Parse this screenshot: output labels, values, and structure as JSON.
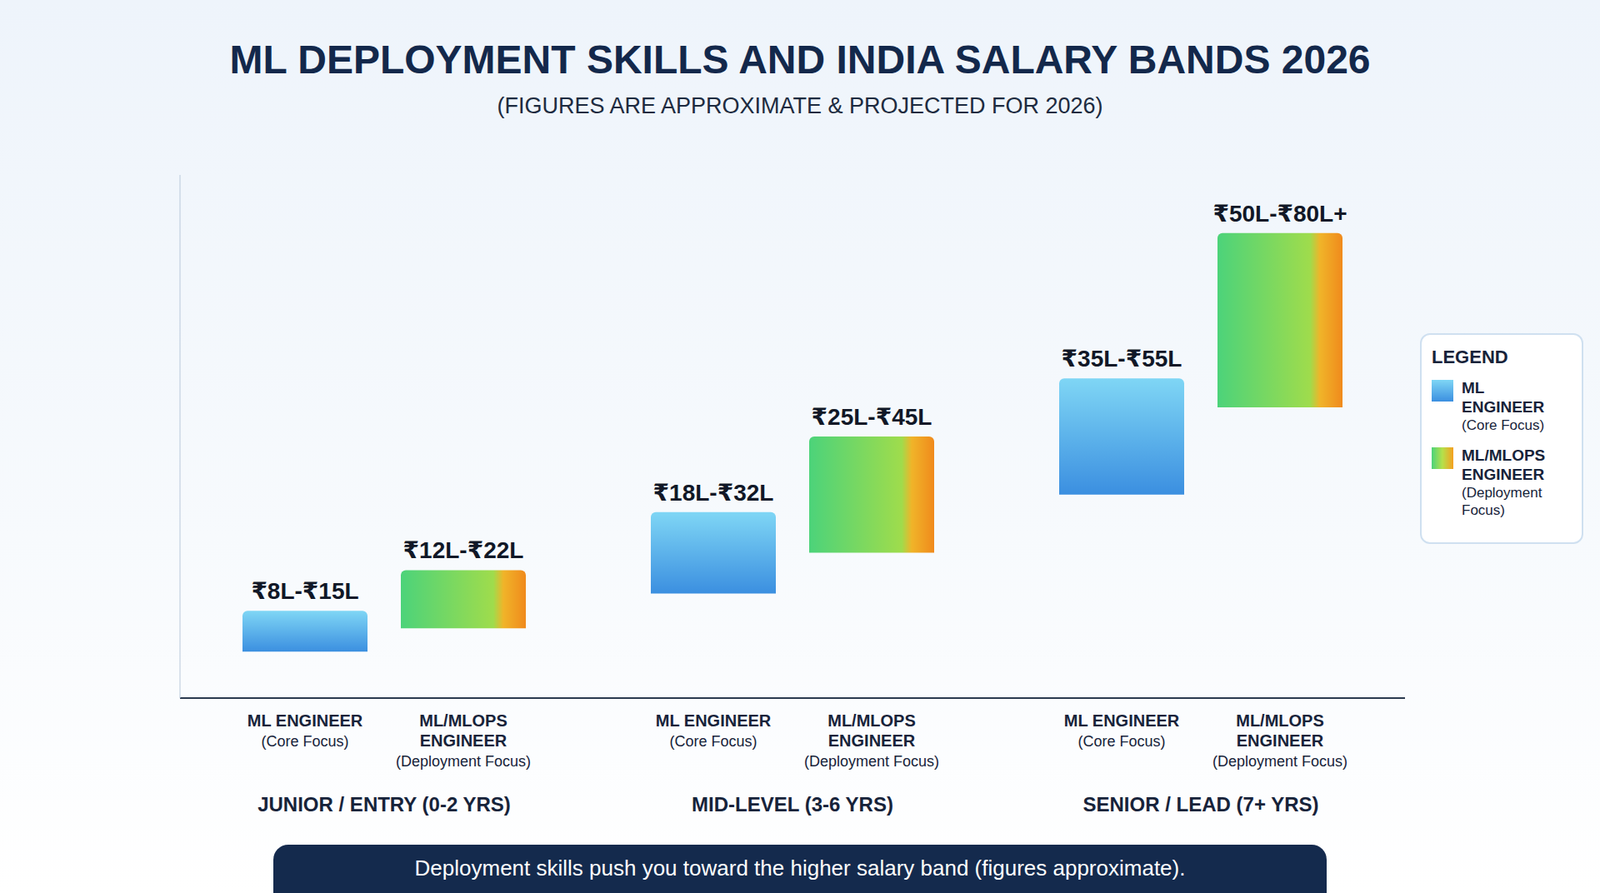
{
  "chart_data": {
    "type": "bar",
    "title": "ML DEPLOYMENT SKILLS AND INDIA SALARY BANDS 2026",
    "subtitle": "(FIGURES ARE APPROXIMATE & PROJECTED FOR 2026)",
    "categories": [
      "JUNIOR / ENTRY (0-2 YRS)",
      "MID-LEVEL (3-6 YRS)",
      "SENIOR / LEAD (7+ YRS)"
    ],
    "series": [
      {
        "name": "ML ENGINEER (Core Focus)",
        "color": "#3b8fe0",
        "values": [
          [
            8,
            15
          ],
          [
            18,
            32
          ],
          [
            35,
            55
          ]
        ],
        "value_labels": [
          "₹8L-₹15L",
          "₹18L-₹32L",
          "₹35L-₹55L"
        ]
      },
      {
        "name": "ML/MLOPS ENGINEER (Deployment Focus)",
        "color": "#4cd37a",
        "values": [
          [
            12,
            22
          ],
          [
            25,
            45
          ],
          [
            50,
            80
          ]
        ],
        "value_labels": [
          "₹12L-₹22L",
          "₹25L-₹45L",
          "₹50L-₹80L+"
        ]
      }
    ],
    "ylim": [
      0,
      90
    ],
    "grid": false,
    "legend": "right",
    "legend_title": "LEGEND",
    "data_labels": true,
    "tick_labels": "x",
    "footer_note": "Deployment skills push you toward the higher salary band (figures approximate)."
  }
}
